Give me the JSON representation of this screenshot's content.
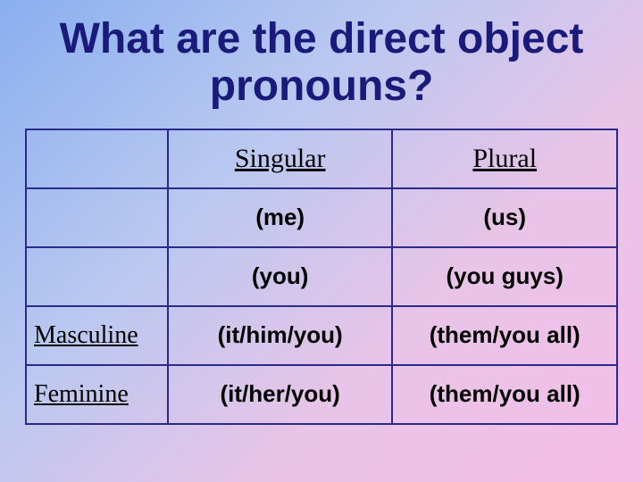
{
  "title": "What are the direct object pronouns?",
  "table": {
    "columns": [
      "Singular",
      "Plural"
    ],
    "rows": [
      {
        "label": "",
        "cells": [
          "(me)",
          "(us)"
        ]
      },
      {
        "label": "",
        "cells": [
          "(you)",
          "(you guys)"
        ]
      },
      {
        "label": "Masculine",
        "cells": [
          "(it/him/you)",
          "(them/you all)"
        ]
      },
      {
        "label": "Feminine",
        "cells": [
          "(it/her/you)",
          "(them/you all)"
        ]
      }
    ],
    "border_color": "#2a2a8a",
    "title_color": "#1a1a7a",
    "header_font": "Times New Roman",
    "body_font": "Comic Sans MS"
  }
}
